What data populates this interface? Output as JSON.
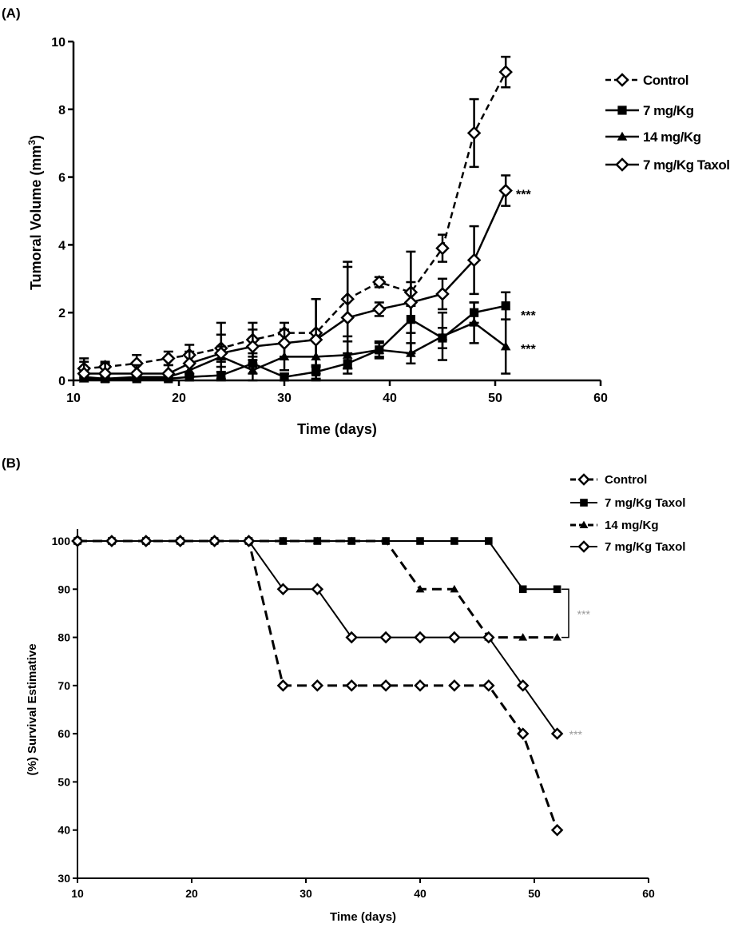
{
  "chart_data": [
    {
      "panel_label": "(A)",
      "type": "line",
      "xlabel": "Time (days)",
      "ylabel": "Tumoral Volume (mm",
      "ylabel_superscript": "3",
      "ylabel_close": ")",
      "xlim": [
        10,
        60
      ],
      "ylim": [
        0,
        10
      ],
      "xticks": [
        10,
        20,
        30,
        40,
        50,
        60
      ],
      "yticks": [
        0,
        2,
        4,
        6,
        8,
        10
      ],
      "grid": false,
      "legend_position": "top-right",
      "series": [
        {
          "name": "Control",
          "style": "dashed",
          "marker": "diamond-open",
          "x": [
            11,
            13,
            16,
            19,
            21,
            24,
            27,
            30,
            33,
            36,
            39,
            42,
            45,
            48,
            51
          ],
          "y": [
            0.35,
            0.4,
            0.5,
            0.65,
            0.75,
            0.95,
            1.2,
            1.4,
            1.4,
            2.4,
            2.9,
            2.6,
            3.9,
            7.3,
            9.1
          ],
          "err": [
            0.3,
            0.15,
            0.25,
            0.2,
            0.3,
            0.4,
            0.5,
            0.3,
            1.0,
            1.1,
            0.15,
            0.3,
            0.4,
            1.0,
            0.45
          ]
        },
        {
          "name": "7 mg/Kg",
          "style": "solid",
          "marker": "square",
          "x": [
            11,
            13,
            16,
            19,
            21,
            24,
            27,
            30,
            33,
            36,
            39,
            42,
            45,
            48,
            51
          ],
          "y": [
            0.1,
            0.05,
            0.05,
            0.05,
            0.1,
            0.15,
            0.5,
            0.1,
            0.25,
            0.5,
            0.9,
            1.8,
            1.25,
            2.0,
            2.2
          ],
          "err": [
            0.1,
            0.05,
            0.05,
            0.05,
            0.1,
            0.1,
            0.3,
            0.1,
            0.2,
            0.3,
            0.25,
            0.4,
            0.3,
            0.3,
            0.4
          ]
        },
        {
          "name": "14 mg/Kg",
          "style": "solid",
          "marker": "triangle",
          "x": [
            11,
            13,
            16,
            19,
            21,
            24,
            27,
            30,
            33,
            36,
            39,
            42,
            45,
            48,
            51
          ],
          "y": [
            0.05,
            0.05,
            0.1,
            0.1,
            0.3,
            0.7,
            0.3,
            0.7,
            0.7,
            0.75,
            0.9,
            0.8,
            1.3,
            1.7,
            1.0
          ],
          "err": [
            0.05,
            0.05,
            0.05,
            0.05,
            0.2,
            0.3,
            0.3,
            0.4,
            0.5,
            0.4,
            0.2,
            0.3,
            0.7,
            0.6,
            0.8
          ]
        },
        {
          "name": "7 mg/Kg Taxol",
          "style": "solid",
          "marker": "diamond-open",
          "x": [
            11,
            13,
            16,
            19,
            21,
            24,
            27,
            30,
            33,
            36,
            39,
            42,
            45,
            48,
            51
          ],
          "y": [
            0.2,
            0.2,
            0.2,
            0.2,
            0.5,
            0.8,
            1.0,
            1.1,
            1.2,
            1.85,
            2.1,
            2.3,
            2.55,
            3.55,
            5.6
          ],
          "err": [
            0.35,
            0.3,
            0.25,
            0.25,
            0.35,
            0.9,
            0.5,
            0.4,
            1.2,
            1.5,
            0.2,
            1.5,
            0.45,
            1.0,
            0.45
          ]
        }
      ],
      "annotations": [
        {
          "text": "***",
          "x": 51,
          "y": 5.6,
          "series": "7 mg/Kg Taxol"
        },
        {
          "text": "***",
          "x": 51,
          "y": 2.0,
          "series": "7 mg/Kg"
        },
        {
          "text": "***",
          "x": 51,
          "y": 1.0,
          "series": "14 mg/Kg"
        }
      ]
    },
    {
      "panel_label": "(B)",
      "type": "line",
      "xlabel": "Time (days)",
      "ylabel": "(%) Survival Estimative",
      "xlim": [
        10,
        60
      ],
      "ylim": [
        30,
        100
      ],
      "xticks": [
        10,
        20,
        30,
        40,
        50,
        60
      ],
      "yticks": [
        30,
        40,
        50,
        60,
        70,
        80,
        90,
        100
      ],
      "grid": false,
      "legend_position": "top-right",
      "series": [
        {
          "name": "Control",
          "style": "dashed",
          "marker": "diamond-open",
          "x": [
            10,
            13,
            16,
            19,
            22,
            25,
            28,
            31,
            34,
            37,
            40,
            43,
            46,
            49,
            52
          ],
          "y": [
            100,
            100,
            100,
            100,
            100,
            100,
            70,
            70,
            70,
            70,
            70,
            70,
            70,
            60,
            40
          ]
        },
        {
          "name": "7 mg/Kg Taxol",
          "style": "solid",
          "marker": "square",
          "x": [
            10,
            13,
            16,
            19,
            22,
            25,
            28,
            31,
            34,
            37,
            40,
            43,
            46,
            49,
            52
          ],
          "y": [
            100,
            100,
            100,
            100,
            100,
            100,
            100,
            100,
            100,
            100,
            100,
            100,
            100,
            90,
            90
          ]
        },
        {
          "name": "14 mg/Kg",
          "style": "dashed",
          "marker": "triangle",
          "x": [
            10,
            13,
            16,
            19,
            22,
            25,
            28,
            31,
            34,
            37,
            40,
            43,
            46,
            49,
            52
          ],
          "y": [
            100,
            100,
            100,
            100,
            100,
            100,
            100,
            100,
            100,
            100,
            90,
            90,
            80,
            80,
            80
          ]
        },
        {
          "name": "7 mg/Kg Taxol",
          "style": "solid",
          "marker": "diamond-open",
          "x": [
            10,
            13,
            16,
            19,
            22,
            25,
            28,
            31,
            34,
            37,
            40,
            43,
            46,
            49,
            52
          ],
          "y": [
            100,
            100,
            100,
            100,
            100,
            100,
            90,
            90,
            80,
            80,
            80,
            80,
            80,
            70,
            60
          ]
        }
      ],
      "annotations": [
        {
          "text": "***",
          "bracket_between_y": [
            90,
            80
          ]
        },
        {
          "text": "***",
          "x": 52,
          "y": 60
        }
      ]
    }
  ]
}
